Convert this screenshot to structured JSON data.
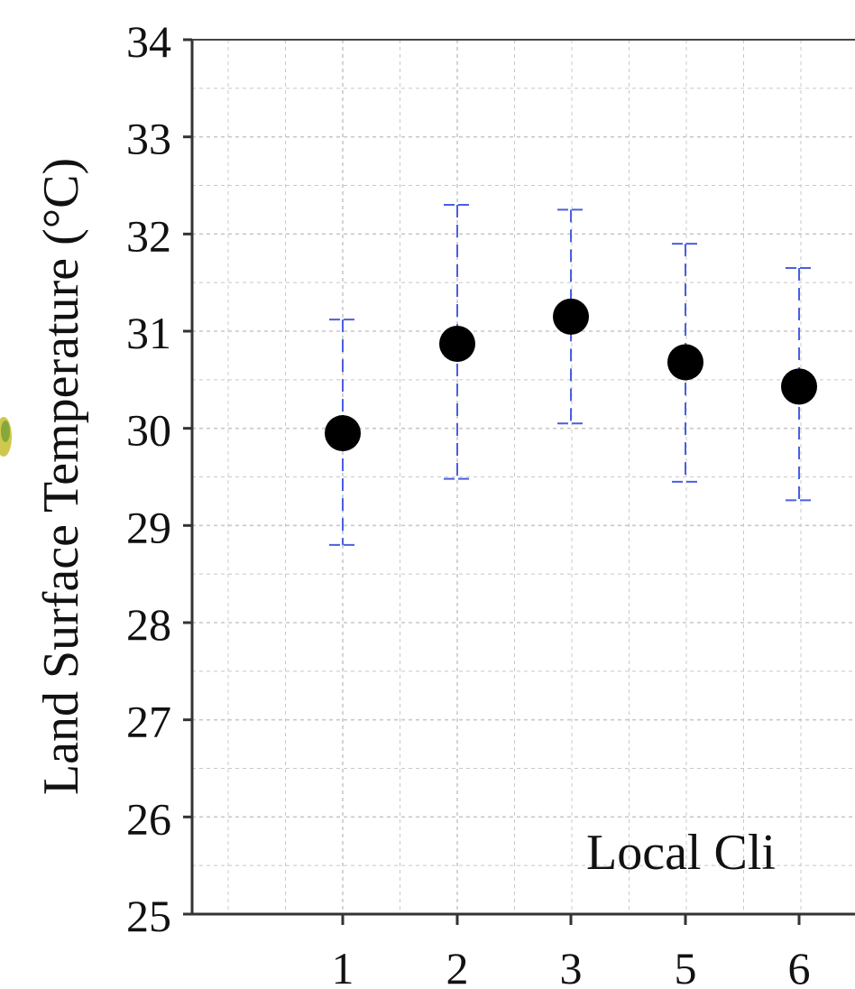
{
  "chart_data": {
    "type": "scatter",
    "ylabel": "Land Surface Temperature (°C)",
    "xlabel": "",
    "categories": [
      "1",
      "2",
      "3",
      "5",
      "6"
    ],
    "ylim": [
      25,
      34
    ],
    "yticks": [
      "25",
      "26",
      "27",
      "28",
      "29",
      "30",
      "31",
      "32",
      "33",
      "34"
    ],
    "grid": true,
    "series": [
      {
        "values": [
          29.95,
          30.87,
          31.15,
          30.68,
          30.43
        ],
        "error_low": [
          28.8,
          29.48,
          30.05,
          29.45,
          29.26
        ],
        "error_high": [
          31.12,
          32.3,
          32.25,
          31.9,
          31.65
        ]
      }
    ],
    "annotation": "Local Cli",
    "colors": {
      "marker": "#000000",
      "errorbar": "#4a5fe0",
      "grid": "#c8c8c8",
      "axis": "#333333"
    }
  }
}
